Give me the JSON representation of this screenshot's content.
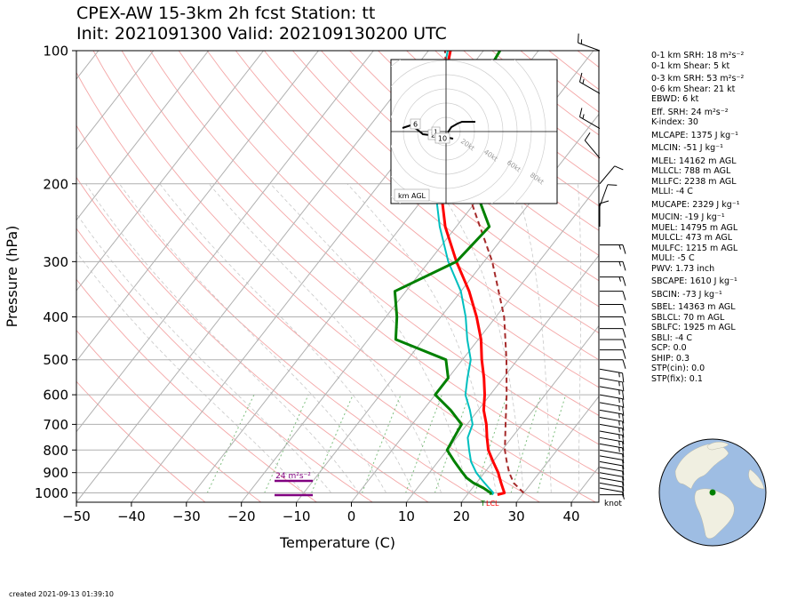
{
  "header": {
    "title_line1": "CPEX-AW 15-3km  2h fcst  Station: tt",
    "title_line2": "Init: 2021091300  Valid: 202109130200 UTC"
  },
  "footer": {
    "created": "created 2021-09-13 01:39:10"
  },
  "params": [
    {
      "text": "0-1 km SRH: 18 m²s⁻²",
      "gap": false
    },
    {
      "text": "0-1 km Shear: 5 kt",
      "gap": true
    },
    {
      "text": "0-3 km SRH: 53 m²s⁻²",
      "gap": false
    },
    {
      "text": "0-6 km Shear: 21 kt",
      "gap": false
    },
    {
      "text": "EBWD: 6 kt",
      "gap": true
    },
    {
      "text": "Eff. SRH: 24 m²s⁻²",
      "gap": false
    },
    {
      "text": "K-index: 30",
      "gap": true
    },
    {
      "text": "MLCAPE: 1375 J kg⁻¹",
      "gap": true
    },
    {
      "text": "MLCIN: -51 J kg⁻¹",
      "gap": true
    },
    {
      "text": "MLEL: 14162 m AGL",
      "gap": false
    },
    {
      "text": "MLLCL: 788 m AGL",
      "gap": false
    },
    {
      "text": "MLLFC: 2238 m AGL",
      "gap": false
    },
    {
      "text": "MLLI: -4 C",
      "gap": true
    },
    {
      "text": "MUCAPE: 2329 J kg⁻¹",
      "gap": true
    },
    {
      "text": "MUCIN: -19 J kg⁻¹",
      "gap": false
    },
    {
      "text": "MUEL: 14795 m AGL",
      "gap": false
    },
    {
      "text": "MULCL: 473 m AGL",
      "gap": false
    },
    {
      "text": "MULFC: 1215 m AGL",
      "gap": false
    },
    {
      "text": "MULI: -5 C",
      "gap": false
    },
    {
      "text": "PWV: 1.73 inch",
      "gap": true
    },
    {
      "text": "SBCAPE: 1610 J kg⁻¹",
      "gap": true
    },
    {
      "text": "SBCIN: -73 J kg⁻¹",
      "gap": true
    },
    {
      "text": "SBEL: 14363 m AGL",
      "gap": false
    },
    {
      "text": "SBLCL: 70 m AGL",
      "gap": false
    },
    {
      "text": "SBLFC: 1925 m AGL",
      "gap": false
    },
    {
      "text": "SBLI: -4 C",
      "gap": false
    },
    {
      "text": "SCP: 0.0",
      "gap": false
    },
    {
      "text": "SHIP: 0.3",
      "gap": false
    },
    {
      "text": "STP(cin): 0.0",
      "gap": false
    },
    {
      "text": "STP(fix): 0.1",
      "gap": false
    }
  ],
  "chart_data": {
    "type": "line",
    "subtype": "skew-T log-p",
    "xlabel": "Temperature (C)",
    "ylabel": "Pressure (hPa)",
    "xlim": [
      -50,
      45
    ],
    "ylim": [
      1050,
      100
    ],
    "y_scale": "log",
    "x_ticks": [
      -50,
      -40,
      -30,
      -20,
      -10,
      0,
      10,
      20,
      30,
      40
    ],
    "y_ticks": [
      1000,
      900,
      800,
      700,
      600,
      500,
      400,
      300,
      200,
      100
    ],
    "grid": true,
    "colors": {
      "temperature": "#ff0000",
      "dewpoint": "#008000",
      "virtual_temperature": "#00bfbf",
      "parcel": "#a52a2a",
      "srh": "#800080",
      "isotherm": "#b0b0b0",
      "dry_adiabat": "#f4a6a6",
      "moist_adiabat": "#c8c8c8",
      "mixing_ratio": "#7fbf7f"
    },
    "series": [
      {
        "key": "temperature",
        "pressure": [
          1010,
          1000,
          975,
          950,
          925,
          900,
          850,
          800,
          750,
          700,
          650,
          600,
          550,
          500,
          450,
          400,
          350,
          300,
          250,
          200,
          150,
          125,
          100
        ],
        "values": [
          25.5,
          26.5,
          25.5,
          24.5,
          23.5,
          22.5,
          20.0,
          17.5,
          15.5,
          13.5,
          11.0,
          9.0,
          6.5,
          3.5,
          0.5,
          -3.5,
          -8.5,
          -15.0,
          -22.0,
          -29.0,
          -37.0,
          -41.5,
          -46.0
        ]
      },
      {
        "key": "virtual_temperature",
        "pressure": [
          1010,
          1000,
          975,
          950,
          925,
          900,
          850,
          800,
          750,
          700,
          650,
          600,
          550,
          500,
          450,
          400,
          350,
          300,
          250,
          200,
          150,
          125,
          100
        ],
        "values": [
          24.5,
          24.5,
          23.0,
          21.5,
          20.0,
          18.5,
          16.0,
          14.0,
          12.0,
          11.0,
          8.5,
          5.5,
          3.5,
          1.5,
          -2.0,
          -5.5,
          -10.0,
          -16.5,
          -23.0,
          -30.0,
          -37.5,
          -42.0,
          -46.5
        ]
      },
      {
        "key": "dewpoint",
        "pressure": [
          1010,
          1000,
          975,
          950,
          925,
          900,
          850,
          800,
          750,
          700,
          650,
          600,
          550,
          500,
          450,
          400,
          350,
          300,
          250,
          200,
          150,
          125,
          100
        ],
        "values": [
          24.3,
          24.0,
          22.0,
          19.5,
          17.5,
          16.0,
          13.0,
          10.0,
          9.5,
          9.0,
          5.0,
          0.0,
          0.0,
          -3.0,
          -15.0,
          -18.0,
          -22.0,
          -15.0,
          -14.0,
          -23.0,
          -32.0,
          -35.5,
          -37.0
        ]
      },
      {
        "key": "parcel",
        "pressure": [
          1000,
          950,
          900,
          850,
          800,
          700,
          600,
          500,
          400,
          300,
          200,
          150,
          100
        ],
        "values": [
          30.0,
          26.8,
          24.5,
          22.5,
          20.5,
          17.0,
          13.0,
          8.0,
          1.5,
          -8.5,
          -24.5,
          -35.0,
          -47.0
        ]
      }
    ],
    "labels": {
      "srh": "24 m²s⁻²",
      "lcl": "LCL",
      "surface_mark": "T",
      "wind_units": "knot"
    },
    "wind_barbs": {
      "pressure": [
        1010,
        975,
        950,
        925,
        900,
        875,
        850,
        825,
        800,
        775,
        750,
        725,
        700,
        675,
        650,
        625,
        600,
        575,
        550,
        525,
        500,
        475,
        450,
        425,
        400,
        375,
        350,
        325,
        300,
        275,
        250,
        225,
        200,
        175,
        150,
        125,
        100
      ],
      "speed_kt": [
        5,
        5,
        10,
        10,
        10,
        10,
        10,
        10,
        10,
        15,
        15,
        15,
        15,
        15,
        15,
        15,
        15,
        15,
        15,
        15,
        10,
        10,
        10,
        10,
        10,
        10,
        10,
        15,
        15,
        15,
        10,
        10,
        10,
        10,
        15,
        15,
        15
      ],
      "direction_deg": [
        90,
        100,
        100,
        100,
        100,
        100,
        100,
        100,
        100,
        100,
        100,
        100,
        100,
        100,
        100,
        100,
        100,
        100,
        100,
        100,
        90,
        90,
        90,
        90,
        90,
        90,
        90,
        90,
        90,
        90,
        0,
        20,
        40,
        320,
        300,
        300,
        290
      ]
    },
    "hodograph": {
      "legend": "km AGL",
      "ring_labels": [
        "20kt",
        "40kt",
        "60kt",
        "80kt"
      ],
      "height_labels": [
        "6",
        "2",
        "1",
        "10"
      ]
    }
  }
}
